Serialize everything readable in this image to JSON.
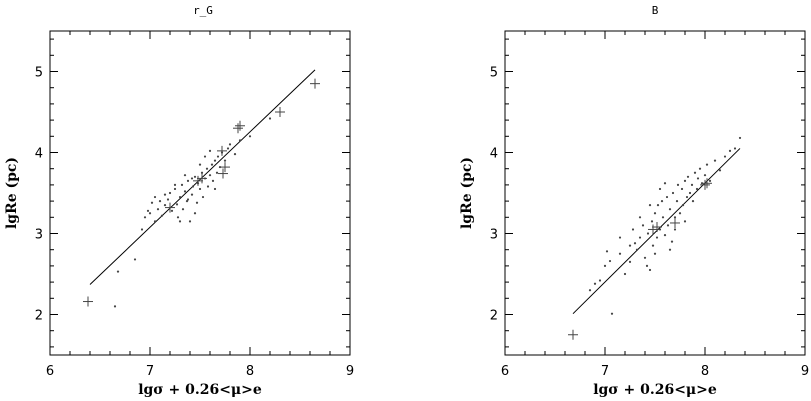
{
  "chart_data": [
    {
      "type": "scatter",
      "title": "r_G",
      "xlabel": "lgσ + 0.26<μ>e",
      "ylabel": "lgRe (pc)",
      "xlim": [
        6,
        9
      ],
      "ylim": [
        1.5,
        5.5
      ],
      "xticks": [
        "6",
        "7",
        "8",
        "9"
      ],
      "yticks": [
        "2",
        "3",
        "4",
        "5"
      ],
      "grid": false,
      "fit_line": [
        [
          6.4,
          2.37
        ],
        [
          8.65,
          5.02
        ]
      ],
      "series": [
        {
          "marker": "dot",
          "points": [
            [
              6.65,
              2.1
            ],
            [
              6.68,
              2.53
            ],
            [
              6.85,
              2.68
            ],
            [
              6.92,
              3.05
            ],
            [
              6.95,
              3.2
            ],
            [
              6.98,
              3.28
            ],
            [
              7.0,
              3.25
            ],
            [
              7.02,
              3.38
            ],
            [
              7.05,
              3.45
            ],
            [
              7.08,
              3.3
            ],
            [
              7.1,
              3.4
            ],
            [
              7.12,
              3.22
            ],
            [
              7.15,
              3.35
            ],
            [
              7.18,
              3.42
            ],
            [
              7.2,
              3.5
            ],
            [
              7.22,
              3.28
            ],
            [
              7.25,
              3.55
            ],
            [
              7.27,
              3.36
            ],
            [
              7.28,
              3.2
            ],
            [
              7.3,
              3.45
            ],
            [
              7.32,
              3.6
            ],
            [
              7.33,
              3.3
            ],
            [
              7.35,
              3.52
            ],
            [
              7.37,
              3.4
            ],
            [
              7.38,
              3.65
            ],
            [
              7.4,
              3.15
            ],
            [
              7.42,
              3.48
            ],
            [
              7.43,
              3.58
            ],
            [
              7.45,
              3.7
            ],
            [
              7.47,
              3.38
            ],
            [
              7.48,
              3.62
            ],
            [
              7.5,
              3.55
            ],
            [
              7.52,
              3.75
            ],
            [
              7.53,
              3.45
            ],
            [
              7.55,
              3.68
            ],
            [
              7.57,
              3.8
            ],
            [
              7.58,
              3.58
            ],
            [
              7.6,
              3.72
            ],
            [
              7.62,
              3.85
            ],
            [
              7.63,
              3.65
            ],
            [
              7.65,
              3.9
            ],
            [
              7.67,
              3.75
            ],
            [
              7.68,
              3.95
            ],
            [
              7.7,
              3.82
            ],
            [
              7.72,
              4.0
            ],
            [
              7.75,
              3.9
            ],
            [
              7.78,
              4.05
            ],
            [
              7.8,
              4.1
            ],
            [
              7.85,
              3.98
            ],
            [
              7.9,
              4.15
            ],
            [
              8.0,
              4.2
            ],
            [
              8.2,
              4.42
            ],
            [
              7.35,
              3.72
            ],
            [
              7.25,
              3.6
            ],
            [
              7.15,
              3.48
            ],
            [
              7.45,
              3.25
            ],
            [
              7.55,
              3.95
            ],
            [
              7.65,
              3.55
            ],
            [
              7.05,
              3.15
            ],
            [
              7.3,
              3.15
            ],
            [
              7.38,
              3.42
            ],
            [
              7.5,
              3.85
            ],
            [
              7.42,
              3.68
            ],
            [
              7.6,
              4.02
            ]
          ]
        },
        {
          "marker": "cross",
          "points": [
            [
              6.38,
              2.16
            ],
            [
              7.2,
              3.32
            ],
            [
              7.48,
              3.65
            ],
            [
              7.52,
              3.68
            ],
            [
              7.73,
              3.74
            ],
            [
              7.75,
              3.82
            ],
            [
              7.72,
              4.02
            ],
            [
              7.88,
              4.3
            ],
            [
              7.9,
              4.33
            ],
            [
              8.3,
              4.5
            ],
            [
              8.65,
              4.85
            ]
          ]
        }
      ]
    },
    {
      "type": "scatter",
      "title": "B",
      "xlabel": "lgσ + 0.26<μ>e",
      "ylabel": "lgRe (pc)",
      "xlim": [
        6,
        9
      ],
      "ylim": [
        1.5,
        5.5
      ],
      "xticks": [
        "6",
        "7",
        "8",
        "9"
      ],
      "yticks": [
        "2",
        "3",
        "4",
        "5"
      ],
      "grid": false,
      "fit_line": [
        [
          6.68,
          2.01
        ],
        [
          8.35,
          4.05
        ]
      ],
      "series": [
        {
          "marker": "dot",
          "points": [
            [
              6.85,
              2.3
            ],
            [
              6.9,
              2.38
            ],
            [
              6.95,
              2.42
            ],
            [
              7.0,
              2.6
            ],
            [
              7.02,
              2.78
            ],
            [
              7.05,
              2.66
            ],
            [
              7.07,
              2.01
            ],
            [
              7.15,
              2.75
            ],
            [
              7.2,
              2.5
            ],
            [
              7.25,
              2.65
            ],
            [
              7.28,
              3.05
            ],
            [
              7.3,
              2.88
            ],
            [
              7.32,
              2.8
            ],
            [
              7.35,
              2.95
            ],
            [
              7.38,
              3.1
            ],
            [
              7.4,
              2.7
            ],
            [
              7.42,
              2.6
            ],
            [
              7.43,
              3.0
            ],
            [
              7.45,
              2.55
            ],
            [
              7.47,
              3.15
            ],
            [
              7.48,
              2.85
            ],
            [
              7.5,
              3.25
            ],
            [
              7.52,
              2.95
            ],
            [
              7.53,
              3.35
            ],
            [
              7.55,
              3.05
            ],
            [
              7.57,
              3.4
            ],
            [
              7.58,
              3.2
            ],
            [
              7.6,
              2.98
            ],
            [
              7.62,
              3.45
            ],
            [
              7.63,
              3.1
            ],
            [
              7.65,
              3.3
            ],
            [
              7.67,
              2.9
            ],
            [
              7.68,
              3.5
            ],
            [
              7.7,
              3.2
            ],
            [
              7.72,
              3.4
            ],
            [
              7.73,
              3.6
            ],
            [
              7.75,
              3.25
            ],
            [
              7.77,
              3.55
            ],
            [
              7.78,
              3.35
            ],
            [
              7.8,
              3.65
            ],
            [
              7.82,
              3.45
            ],
            [
              7.83,
              3.7
            ],
            [
              7.85,
              3.5
            ],
            [
              7.87,
              3.6
            ],
            [
              7.88,
              3.4
            ],
            [
              7.9,
              3.75
            ],
            [
              7.92,
              3.55
            ],
            [
              7.93,
              3.68
            ],
            [
              7.95,
              3.8
            ],
            [
              7.97,
              3.62
            ],
            [
              8.0,
              3.72
            ],
            [
              8.02,
              3.85
            ],
            [
              8.05,
              3.65
            ],
            [
              8.1,
              3.9
            ],
            [
              8.15,
              3.78
            ],
            [
              8.2,
              3.95
            ],
            [
              8.25,
              4.02
            ],
            [
              8.3,
              4.05
            ],
            [
              8.35,
              4.18
            ],
            [
              7.55,
              3.55
            ],
            [
              7.45,
              3.35
            ],
            [
              7.6,
              3.62
            ],
            [
              7.7,
              3.05
            ],
            [
              7.35,
              3.2
            ],
            [
              7.5,
              2.75
            ],
            [
              7.65,
              2.8
            ],
            [
              7.8,
              3.15
            ],
            [
              7.25,
              2.85
            ],
            [
              7.15,
              2.95
            ]
          ]
        },
        {
          "marker": "cross",
          "points": [
            [
              6.68,
              1.75
            ],
            [
              7.48,
              3.05
            ],
            [
              7.52,
              3.08
            ],
            [
              7.7,
              3.13
            ],
            [
              8.0,
              3.6
            ],
            [
              8.02,
              3.62
            ]
          ]
        }
      ]
    }
  ]
}
